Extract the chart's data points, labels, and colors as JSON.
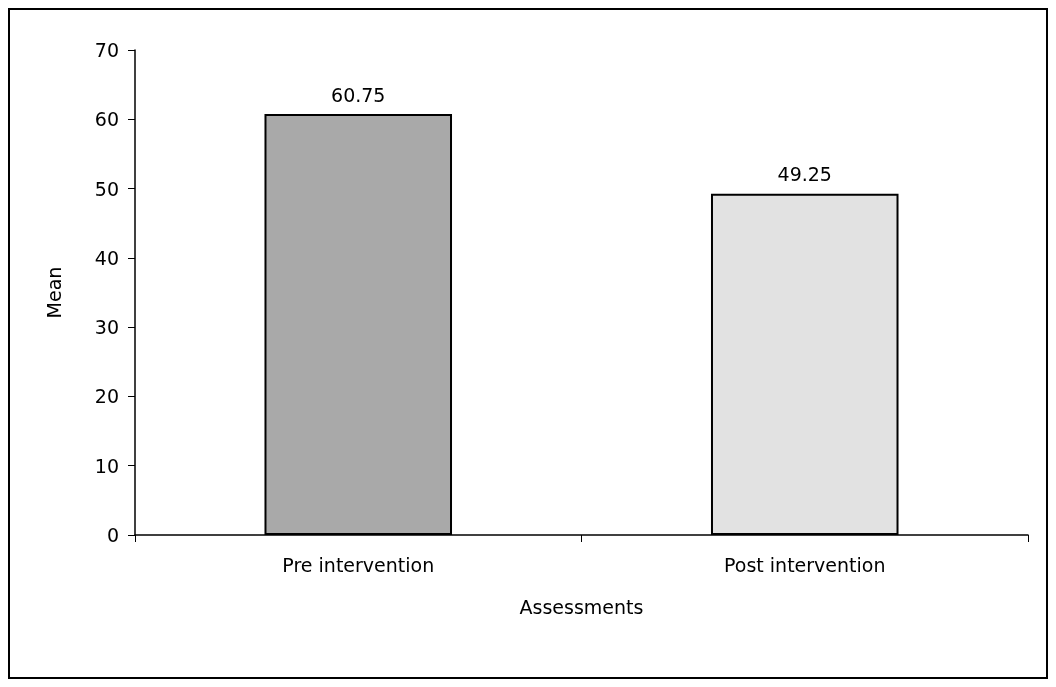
{
  "chart_data": {
    "type": "bar",
    "categories": [
      "Pre intervention",
      "Post intervention"
    ],
    "values": [
      60.75,
      49.25
    ],
    "colors": [
      "#a9a9a9",
      "#e2e2e2"
    ],
    "xlabel": "Assessments",
    "ylabel": "Mean",
    "ylim": [
      0,
      70
    ],
    "yticks": [
      0,
      10,
      20,
      30,
      40,
      50,
      60,
      70
    ],
    "data_labels": true,
    "grid": false
  }
}
